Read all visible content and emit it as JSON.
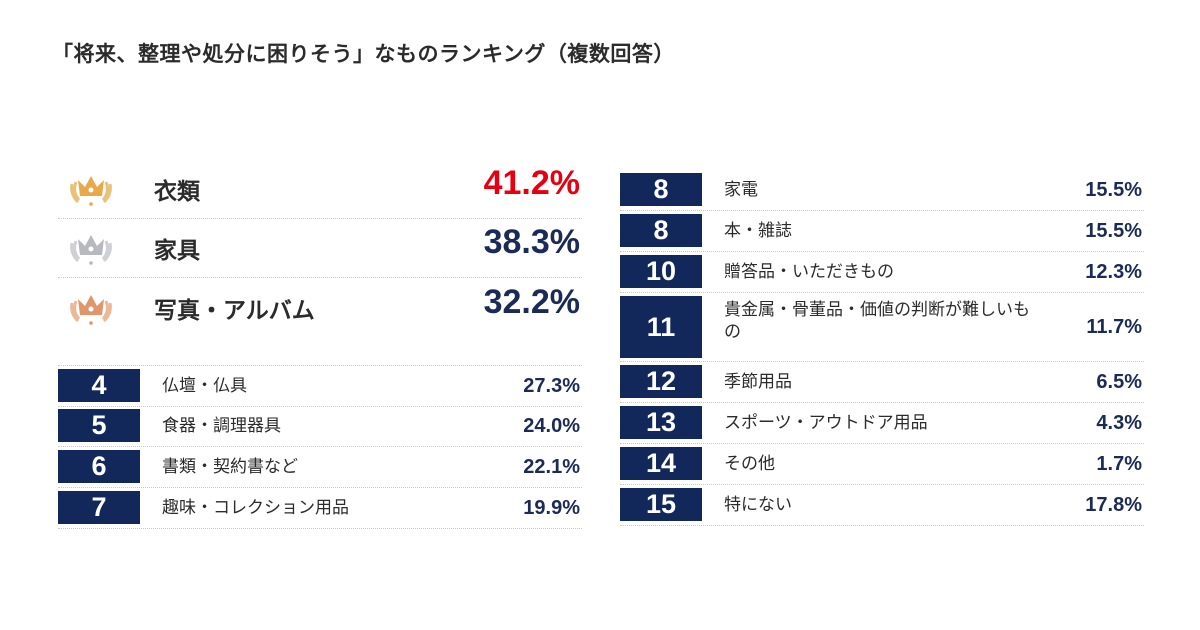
{
  "title": "「将来、整理や処分に困りそう」なものランキング（複数回答）",
  "colors": {
    "rank_bg": "#12275a",
    "value": "#1b2a56",
    "highlight": "#e60012",
    "gold": "#e9a94a",
    "silver": "#b8b8c0",
    "bronze": "#e0966a"
  },
  "chart_data": {
    "type": "table",
    "title": "「将来、整理や処分に困りそう」なものランキング（複数回答）",
    "top3": [
      {
        "rank": "1",
        "icon": "gold-crown-icon",
        "label": "衣類",
        "value": "41.2%"
      },
      {
        "rank": "2",
        "icon": "silver-crown-icon",
        "label": "家具",
        "value": "38.3%"
      },
      {
        "rank": "3",
        "icon": "bronze-crown-icon",
        "label": "写真・アルバム",
        "value": "32.2%"
      }
    ],
    "left_list": [
      {
        "rank": "4",
        "label": "仏壇・仏具",
        "value": "27.3%"
      },
      {
        "rank": "5",
        "label": "食器・調理器具",
        "value": "24.0%"
      },
      {
        "rank": "6",
        "label": "書類・契約書など",
        "value": "22.1%"
      },
      {
        "rank": "7",
        "label": "趣味・コレクション用品",
        "value": "19.9%"
      }
    ],
    "right_list": [
      {
        "rank": "8",
        "label": "家電",
        "value": "15.5%"
      },
      {
        "rank": "8",
        "label": "本・雑誌",
        "value": "15.5%"
      },
      {
        "rank": "10",
        "label": "贈答品・いただきもの",
        "value": "12.3%"
      },
      {
        "rank": "11",
        "label": "貴金属・骨董品・価値の判断が難しいもの",
        "value": "11.7%"
      },
      {
        "rank": "12",
        "label": "季節用品",
        "value": "6.5%"
      },
      {
        "rank": "13",
        "label": "スポーツ・アウトドア用品",
        "value": "4.3%"
      },
      {
        "rank": "14",
        "label": "その他",
        "value": "1.7%"
      },
      {
        "rank": "15",
        "label": "特にない",
        "value": "17.8%"
      }
    ]
  }
}
